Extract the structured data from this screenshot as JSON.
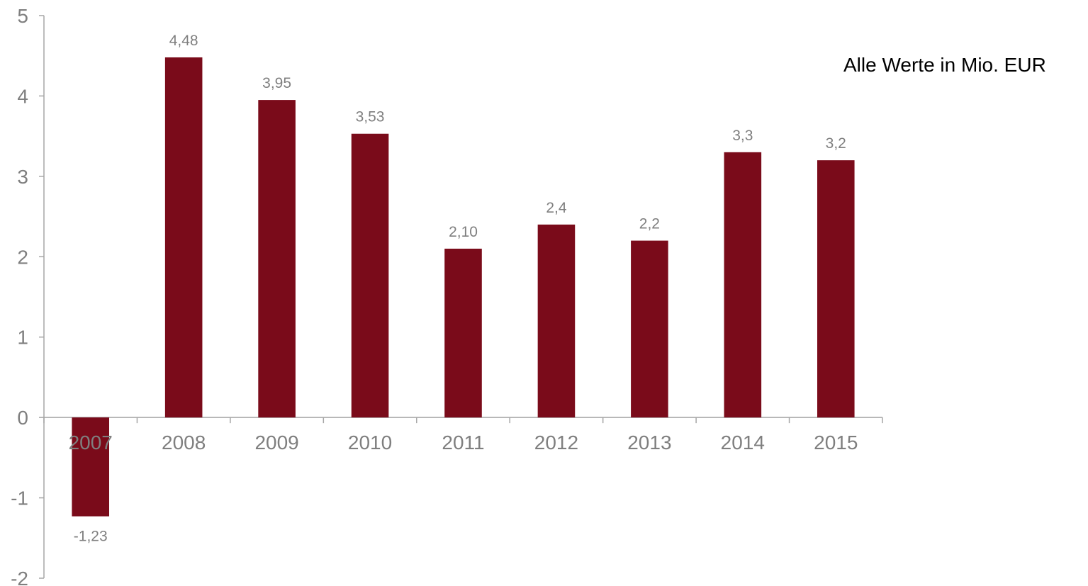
{
  "note": "Alle Werte in Mio. EUR",
  "chart_data": {
    "type": "bar",
    "categories": [
      "2007",
      "2008",
      "2009",
      "2010",
      "2011",
      "2012",
      "2013",
      "2014",
      "2015"
    ],
    "values": [
      -1.23,
      4.48,
      3.95,
      3.53,
      2.1,
      2.4,
      2.2,
      3.3,
      3.2
    ],
    "data_labels": [
      "-1,23",
      "4,48",
      "3,95",
      "3,53",
      "2,10",
      "2,4",
      "2,2",
      "3,3",
      "3,2"
    ],
    "yticks": [
      5,
      4,
      3,
      2,
      1,
      0,
      -1,
      -2
    ],
    "ytick_labels": [
      "5",
      "4",
      "3",
      "2",
      "1",
      "0",
      "-1",
      "-2"
    ],
    "ylim": [
      -2,
      5
    ],
    "title": "",
    "xlabel": "",
    "ylabel": "",
    "grid": false,
    "legend": "none",
    "bar_color": "#7a0b1a",
    "axis_color": "#a6a6a6",
    "label_color": "#7f7f7f"
  }
}
